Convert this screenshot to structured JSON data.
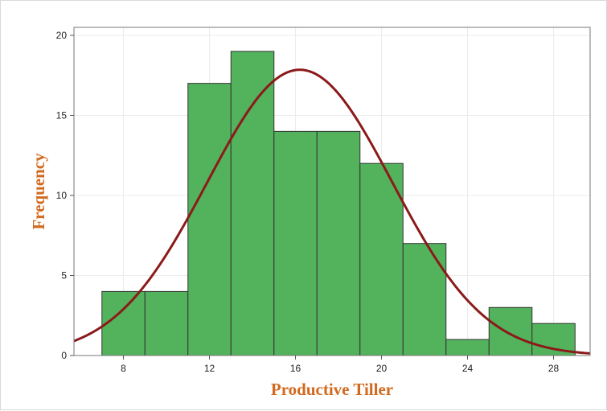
{
  "chart_data": {
    "type": "bar",
    "subtype": "histogram",
    "title": "",
    "xlabel": "Productive Tiller",
    "ylabel": "Frequency",
    "bin_edges": [
      7,
      9,
      11,
      13,
      15,
      17,
      19,
      21,
      23,
      25,
      27,
      29
    ],
    "values": [
      4,
      4,
      17,
      19,
      14,
      14,
      12,
      7,
      1,
      3,
      2
    ],
    "xlim": [
      5.7,
      29.7
    ],
    "ylim": [
      0,
      20.5
    ],
    "xticks": [
      8,
      12,
      16,
      20,
      24,
      28
    ],
    "yticks": [
      0,
      5,
      10,
      15,
      20
    ],
    "fit_curve": {
      "type": "normal",
      "mean": 16.2,
      "sd": 4.3,
      "peak": 17.85
    },
    "grid": true,
    "colors": {
      "bar_fill": "#52b35c",
      "bar_edge": "#333333",
      "curve": "#8b1a1a",
      "axis_title": "#d2691e"
    }
  }
}
